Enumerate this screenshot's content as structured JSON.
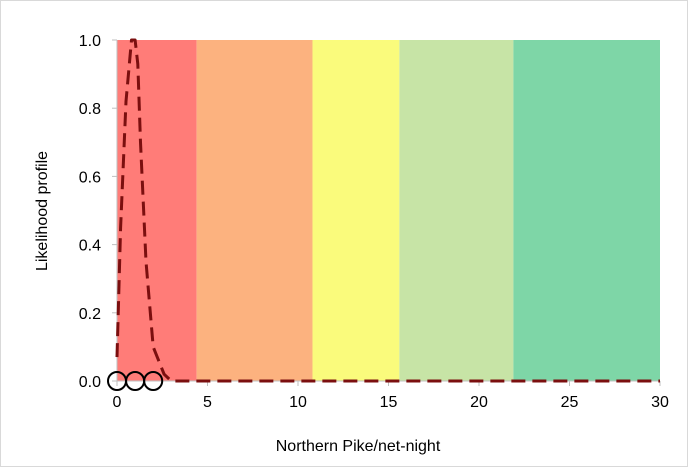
{
  "chart_data": {
    "type": "line",
    "title": "",
    "xlabel": "Northern Pike/net-night",
    "ylabel": "Likelihood profile",
    "xlim": [
      0,
      30
    ],
    "ylim": [
      0,
      1
    ],
    "x_ticks": [
      0,
      5,
      10,
      15,
      20,
      25,
      30
    ],
    "x_tick_labels": [
      "0",
      "5",
      "10",
      "15",
      "20",
      "25",
      "30"
    ],
    "y_ticks": [
      0,
      0.2,
      0.4,
      0.6,
      0.8,
      1
    ],
    "y_tick_labels": [
      "0.0",
      "0.2",
      "0.4",
      "0.6",
      "0.8",
      "1.0"
    ],
    "grid": false,
    "bands": [
      {
        "from": 0,
        "to": 4.4,
        "color": "#ff7c78"
      },
      {
        "from": 4.4,
        "to": 10.8,
        "color": "#fcb27f"
      },
      {
        "from": 10.8,
        "to": 15.6,
        "color": "#fafb7c"
      },
      {
        "from": 15.6,
        "to": 21.9,
        "color": "#c7e4a6"
      },
      {
        "from": 21.9,
        "to": 30,
        "color": "#7ed6a7"
      }
    ],
    "series": [
      {
        "style": "dashed",
        "color": "#7b0f0f",
        "x": [
          0,
          0.2,
          0.5,
          0.8,
          1.0,
          1.15,
          1.3,
          1.6,
          2.0,
          2.6,
          3.0,
          4.0,
          30
        ],
        "y": [
          0.07,
          0.45,
          0.82,
          1.0,
          1.0,
          0.93,
          0.7,
          0.35,
          0.1,
          0.02,
          0,
          0,
          0
        ]
      }
    ],
    "points": [
      {
        "x": 0,
        "y": 0
      },
      {
        "x": 1,
        "y": 0
      },
      {
        "x": 2,
        "y": 0
      }
    ]
  }
}
